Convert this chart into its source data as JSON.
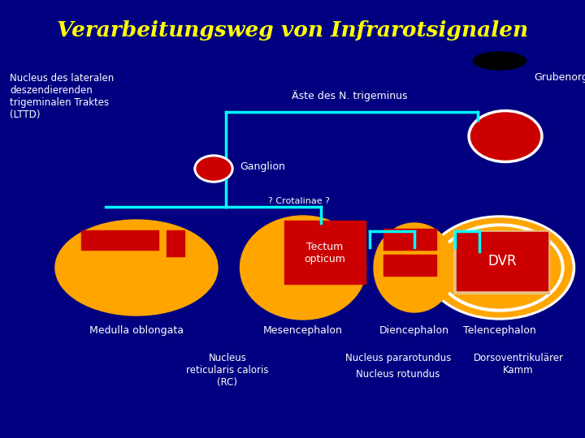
{
  "title": "Verarbeitungsweg von Infrarotsignalen",
  "bg_color": "#000080",
  "title_color": "#FFFF00",
  "white": "#FFFFFF",
  "cyan": "#00FFFF",
  "orange": "#FFA500",
  "red": "#CC0000",
  "black": "#000000",
  "labels": {
    "lttd": "Nucleus des lateralen\ndeszendierenden\ntrigeminalen Traktes\n(LTTD)",
    "aste": "Äste des N. trigeminus",
    "grubenorgan": "Grubenorgan",
    "ganglion": "Ganglion",
    "crotalinae": "? Crotalinae ?",
    "tectum": "Tectum\nopticum",
    "dvr": "DVR",
    "medulla": "Medulla oblongata",
    "mesencephalon": "Mesencephalon",
    "diencephalon": "Diencephalon",
    "telencephalon": "Telencephalon",
    "nucleus_rc": "Nucleus\nreticularis caloris\n(RC)",
    "nucleus_para": "Nucleus pararotundus",
    "nucleus_rot": "Nucleus rotundus",
    "dorso": "Dorsoventrikulärer\nKamm"
  }
}
